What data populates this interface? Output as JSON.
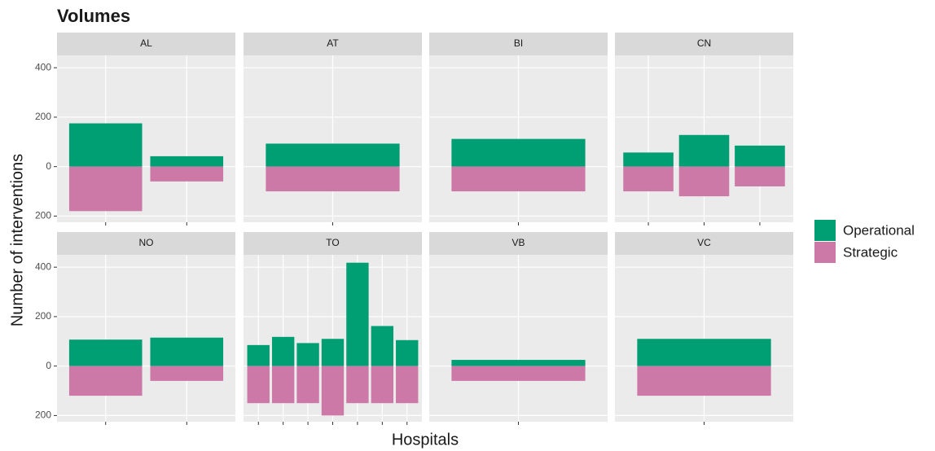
{
  "chart_data": {
    "type": "bar",
    "title": "Volumes",
    "x_label": "Hospitals",
    "y_label": "Number of interventions",
    "series": [
      {
        "name": "Operational",
        "color": "#009E73"
      },
      {
        "name": "Strategic",
        "color": "#CC79A7"
      }
    ],
    "ylim": [
      -225,
      450
    ],
    "yticks": [
      {
        "value": -200,
        "label": "200"
      },
      0,
      200,
      400
    ],
    "grid": true,
    "facets": [
      {
        "label": "AL",
        "categories": [
          null,
          null
        ],
        "series": [
          {
            "values": [
              175,
              42
            ]
          },
          {
            "values": [
              -180,
              -60
            ]
          }
        ]
      },
      {
        "label": "AT",
        "categories": [
          null
        ],
        "series": [
          {
            "values": [
              93
            ]
          },
          {
            "values": [
              -100
            ]
          }
        ]
      },
      {
        "label": "BI",
        "categories": [
          null
        ],
        "series": [
          {
            "values": [
              112
            ]
          },
          {
            "values": [
              -100
            ]
          }
        ]
      },
      {
        "label": "CN",
        "categories": [
          null,
          null,
          null
        ],
        "series": [
          {
            "values": [
              57,
              128,
              85
            ]
          },
          {
            "values": [
              -100,
              -120,
              -80
            ]
          }
        ]
      },
      {
        "label": "NO",
        "categories": [
          null,
          null
        ],
        "series": [
          {
            "values": [
              107,
              115
            ]
          },
          {
            "values": [
              -120,
              -60
            ]
          }
        ]
      },
      {
        "label": "TO",
        "categories": [
          null,
          null,
          null,
          null,
          null,
          null,
          null
        ],
        "series": [
          {
            "values": [
              85,
              118,
              93,
              110,
              418,
              162,
              105
            ]
          },
          {
            "values": [
              -150,
              -150,
              -150,
              -200,
              -150,
              -150,
              -150
            ]
          }
        ]
      },
      {
        "label": "VB",
        "categories": [
          null
        ],
        "series": [
          {
            "values": [
              25
            ]
          },
          {
            "values": [
              -60
            ]
          }
        ]
      },
      {
        "label": "VC",
        "categories": [
          null
        ],
        "series": [
          {
            "values": [
              110
            ]
          },
          {
            "values": [
              -120
            ]
          }
        ]
      }
    ]
  }
}
